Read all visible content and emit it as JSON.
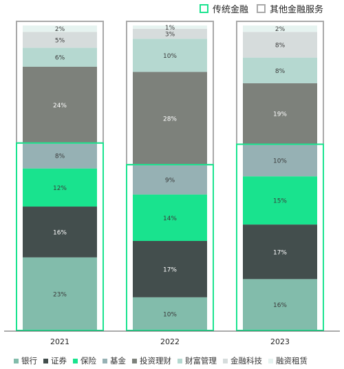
{
  "chart_data": {
    "type": "bar",
    "stacked": true,
    "categories": [
      "2021",
      "2022",
      "2023"
    ],
    "series": [
      {
        "name": "银行",
        "color": "#82bcab",
        "group": "传统金融",
        "values": [
          23,
          10,
          16
        ]
      },
      {
        "name": "证券",
        "color": "#434e4d",
        "group": "传统金融",
        "values": [
          16,
          17,
          17
        ]
      },
      {
        "name": "保险",
        "color": "#19e38e",
        "group": "传统金融",
        "values": [
          12,
          14,
          15
        ]
      },
      {
        "name": "基金",
        "color": "#96b1b4",
        "group": "传统金融",
        "values": [
          8,
          9,
          10
        ]
      },
      {
        "name": "投资理财",
        "color": "#7d817b",
        "group": "其他金融服务",
        "values": [
          24,
          28,
          19
        ]
      },
      {
        "name": "财富管理",
        "color": "#b5d8d0",
        "group": "其他金融服务",
        "values": [
          6,
          10,
          8
        ]
      },
      {
        "name": "金融科技",
        "color": "#d6dcdc",
        "group": "其他金融服务",
        "values": [
          5,
          3,
          8
        ]
      },
      {
        "name": "融资租赁",
        "color": "#e6f3f0",
        "group": "其他金融服务",
        "values": [
          2,
          1,
          2
        ]
      }
    ],
    "value_suffix": "%",
    "group_legend": [
      {
        "name": "传统金融",
        "color": "#19e38e"
      },
      {
        "name": "其他金融服务",
        "color": "#a8a8a8"
      }
    ],
    "legend_position": "bottom",
    "grid": false
  }
}
